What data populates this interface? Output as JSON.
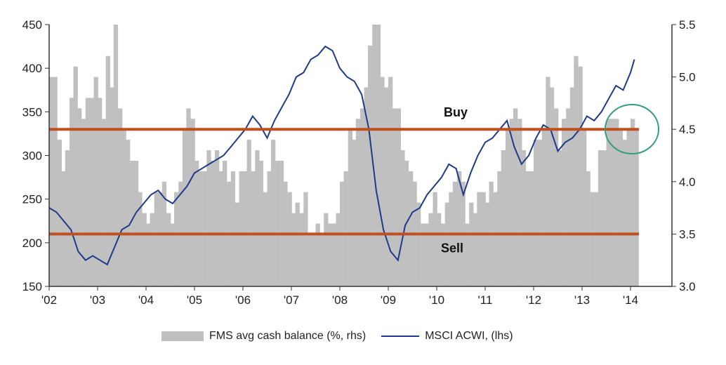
{
  "chart_data": {
    "type": "bar+line",
    "x_tick_labels": [
      "'02",
      "'03",
      "'04",
      "'05",
      "'06",
      "'07",
      "'08",
      "'09",
      "'10",
      "'11",
      "'12",
      "'13",
      "'14"
    ],
    "left_axis": {
      "ticks": [
        150,
        200,
        250,
        300,
        350,
        400,
        450
      ],
      "ylim": [
        150,
        450
      ]
    },
    "right_axis": {
      "ticks": [
        "3.0",
        "3.5",
        "4.0",
        "4.5",
        "5.0",
        "5.5"
      ],
      "ylim": [
        3.0,
        5.5
      ]
    },
    "annotations": {
      "buy_label": "Buy",
      "sell_label": "Sell",
      "buy_level_rhs": 4.5,
      "sell_level_rhs": 3.5
    },
    "legend": {
      "bar_series": "FMS avg cash balance (%, rhs)",
      "line_series": "MSCI ACWI, (lhs)"
    },
    "colors": {
      "bars": "#c0c0c0",
      "line": "#1f3a8a",
      "threshold": "#c0501f",
      "circle": "#2e9e7a"
    },
    "bar_series": {
      "name": "FMS avg cash balance (%, rhs)",
      "x": [
        2002.0,
        2002.08,
        2002.17,
        2002.25,
        2002.33,
        2002.42,
        2002.5,
        2002.58,
        2002.67,
        2002.75,
        2002.83,
        2002.92,
        2003.0,
        2003.08,
        2003.17,
        2003.25,
        2003.33,
        2003.42,
        2003.5,
        2003.58,
        2003.67,
        2003.75,
        2003.83,
        2003.92,
        2004.0,
        2004.08,
        2004.17,
        2004.25,
        2004.33,
        2004.42,
        2004.5,
        2004.58,
        2004.67,
        2004.75,
        2004.83,
        2004.92,
        2005.0,
        2005.08,
        2005.17,
        2005.25,
        2005.33,
        2005.42,
        2005.5,
        2005.58,
        2005.67,
        2005.75,
        2005.83,
        2005.92,
        2006.0,
        2006.08,
        2006.17,
        2006.25,
        2006.33,
        2006.42,
        2006.5,
        2006.58,
        2006.67,
        2006.75,
        2006.83,
        2006.92,
        2007.0,
        2007.08,
        2007.17,
        2007.25,
        2007.33,
        2007.42,
        2007.5,
        2007.58,
        2007.67,
        2007.75,
        2007.83,
        2007.92,
        2008.0,
        2008.08,
        2008.17,
        2008.25,
        2008.33,
        2008.42,
        2008.5,
        2008.58,
        2008.67,
        2008.75,
        2008.83,
        2008.92,
        2009.0,
        2009.08,
        2009.17,
        2009.25,
        2009.33,
        2009.42,
        2009.5,
        2009.58,
        2009.67,
        2009.75,
        2009.83,
        2009.92,
        2010.0,
        2010.08,
        2010.17,
        2010.25,
        2010.33,
        2010.42,
        2010.5,
        2010.58,
        2010.67,
        2010.75,
        2010.83,
        2010.92,
        2011.0,
        2011.08,
        2011.17,
        2011.25,
        2011.33,
        2011.42,
        2011.5,
        2011.58,
        2011.67,
        2011.75,
        2011.83,
        2011.92,
        2012.0,
        2012.08,
        2012.17,
        2012.25,
        2012.33,
        2012.42,
        2012.5,
        2012.58,
        2012.67,
        2012.75,
        2012.83,
        2012.92,
        2013.0,
        2013.08,
        2013.17,
        2013.25,
        2013.33,
        2013.42,
        2013.5,
        2013.58,
        2013.67,
        2013.75,
        2013.83,
        2013.92,
        2014.0,
        2014.08
      ],
      "values": [
        5.0,
        5.0,
        4.4,
        4.1,
        4.3,
        4.8,
        5.1,
        4.7,
        4.6,
        4.8,
        4.8,
        5.0,
        4.8,
        4.6,
        5.2,
        4.9,
        5.5,
        4.7,
        4.5,
        4.4,
        4.2,
        4.2,
        3.9,
        3.7,
        3.6,
        3.7,
        3.9,
        3.9,
        4.0,
        3.7,
        3.6,
        3.9,
        4.0,
        4.5,
        4.7,
        4.6,
        4.2,
        4.1,
        4.1,
        4.3,
        4.2,
        4.3,
        4.1,
        4.2,
        4.0,
        4.1,
        3.8,
        4.1,
        4.1,
        4.4,
        4.1,
        4.3,
        4.2,
        3.9,
        4.1,
        4.4,
        4.2,
        4.2,
        4.0,
        3.9,
        3.7,
        3.8,
        3.7,
        3.9,
        3.5,
        3.5,
        3.6,
        3.5,
        3.7,
        3.6,
        3.6,
        3.7,
        4.0,
        4.1,
        4.5,
        4.4,
        4.6,
        4.7,
        4.9,
        5.3,
        5.5,
        5.5,
        5.0,
        4.9,
        5.0,
        4.7,
        4.7,
        4.3,
        4.2,
        4.1,
        4.0,
        3.8,
        3.6,
        3.6,
        3.7,
        3.9,
        3.7,
        3.6,
        3.8,
        3.9,
        4.0,
        4.1,
        4.0,
        3.6,
        3.8,
        3.7,
        3.9,
        3.9,
        3.8,
        4.0,
        3.9,
        4.1,
        4.3,
        4.5,
        4.6,
        4.7,
        4.6,
        4.3,
        4.1,
        4.1,
        4.4,
        4.4,
        4.5,
        5.0,
        4.9,
        4.7,
        4.3,
        4.6,
        4.7,
        4.9,
        5.2,
        5.1,
        4.5,
        4.1,
        3.9,
        3.9,
        4.3,
        4.3,
        4.6,
        4.6,
        4.6,
        4.5,
        4.4,
        4.5,
        4.6,
        4.5
      ]
    },
    "line_series": {
      "name": "MSCI ACWI, (lhs)",
      "x": [
        2002.0,
        2002.15,
        2002.3,
        2002.45,
        2002.6,
        2002.75,
        2002.9,
        2003.05,
        2003.2,
        2003.35,
        2003.5,
        2003.65,
        2003.8,
        2003.95,
        2004.1,
        2004.25,
        2004.4,
        2004.55,
        2004.7,
        2004.85,
        2005.0,
        2005.15,
        2005.3,
        2005.45,
        2005.6,
        2005.75,
        2005.9,
        2006.05,
        2006.2,
        2006.35,
        2006.5,
        2006.65,
        2006.8,
        2006.95,
        2007.1,
        2007.25,
        2007.4,
        2007.55,
        2007.7,
        2007.85,
        2008.0,
        2008.15,
        2008.3,
        2008.45,
        2008.6,
        2008.75,
        2008.9,
        2009.05,
        2009.2,
        2009.35,
        2009.5,
        2009.65,
        2009.8,
        2009.95,
        2010.1,
        2010.25,
        2010.4,
        2010.55,
        2010.7,
        2010.85,
        2011.0,
        2011.15,
        2011.3,
        2011.45,
        2011.6,
        2011.75,
        2011.9,
        2012.05,
        2012.2,
        2012.35,
        2012.5,
        2012.65,
        2012.8,
        2012.95,
        2013.1,
        2013.25,
        2013.4,
        2013.55,
        2013.7,
        2013.85,
        2014.0,
        2014.08
      ],
      "values": [
        240,
        235,
        225,
        215,
        190,
        180,
        185,
        180,
        175,
        195,
        215,
        220,
        235,
        245,
        255,
        260,
        250,
        245,
        255,
        265,
        280,
        285,
        290,
        295,
        300,
        310,
        320,
        330,
        345,
        335,
        320,
        340,
        355,
        370,
        390,
        395,
        410,
        415,
        425,
        420,
        400,
        390,
        385,
        370,
        330,
        260,
        215,
        190,
        180,
        220,
        235,
        240,
        255,
        265,
        275,
        290,
        285,
        255,
        280,
        300,
        315,
        320,
        330,
        340,
        310,
        290,
        300,
        320,
        335,
        330,
        305,
        315,
        320,
        330,
        345,
        340,
        350,
        365,
        380,
        375,
        395,
        410
      ]
    }
  }
}
